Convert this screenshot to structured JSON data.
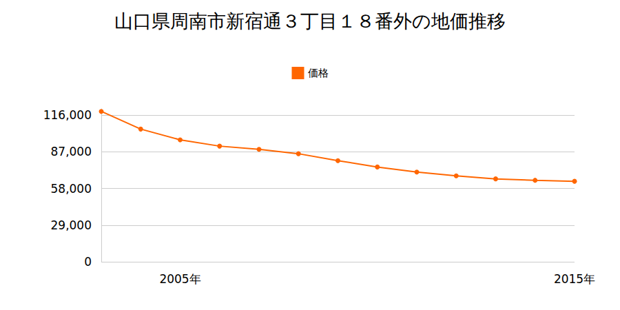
{
  "chart_data": {
    "type": "line",
    "title": "山口県周南市新宿通３丁目１８番外の地価推移",
    "categories": [
      null,
      null,
      "2005年",
      null,
      null,
      null,
      null,
      null,
      null,
      null,
      null,
      null,
      "2015年"
    ],
    "series": [
      {
        "name": "価格",
        "color": "#ff6600",
        "marker": "circle",
        "values": [
          119000,
          105000,
          96500,
          91500,
          89000,
          85500,
          80000,
          75000,
          71000,
          68000,
          65600,
          64500,
          63700
        ]
      }
    ],
    "ylim": [
      0,
      121000
    ],
    "yticks": [
      0,
      {
        "value": 29000,
        "label": "29,000"
      },
      {
        "value": 58000,
        "label": "58,000"
      },
      {
        "value": 87000,
        "label": "87,000"
      },
      {
        "value": 116000,
        "label": "116,000"
      }
    ],
    "grid": true,
    "legend": "top"
  }
}
